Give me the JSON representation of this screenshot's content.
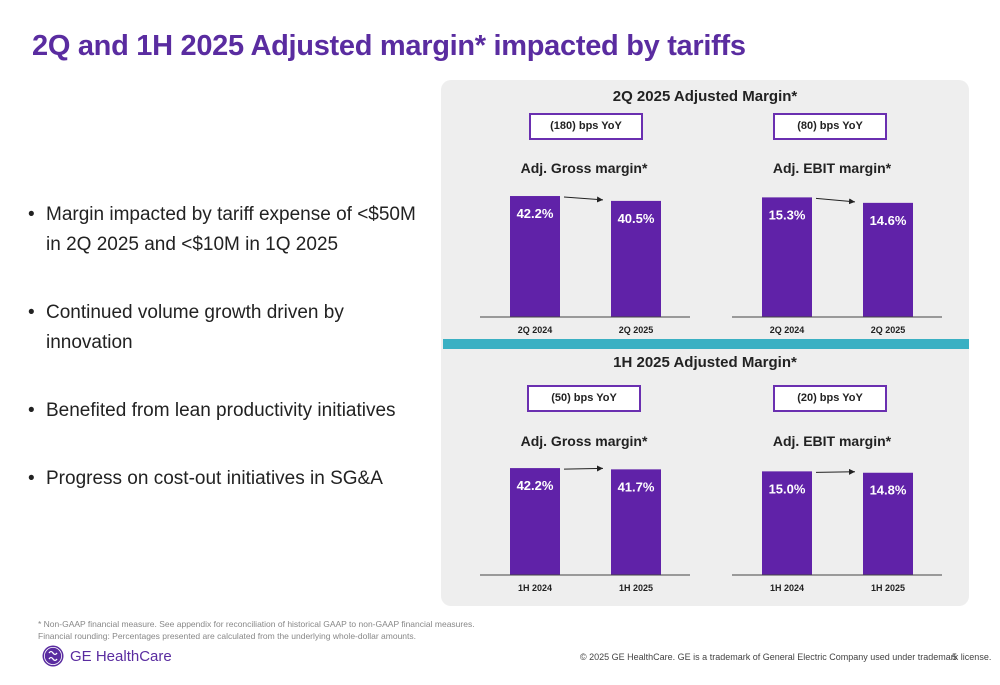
{
  "title": "2Q and 1H 2025 Adjusted margin* impacted by tariffs",
  "bullets": [
    "Margin impacted by tariff expense of <$50M in 2Q 2025 and <$10M in 1Q 2025",
    "Continued volume growth driven by innovation",
    "Benefited from lean productivity initiatives",
    "Progress on cost-out initiatives in SG&A"
  ],
  "sections": [
    {
      "title": "2Q 2025 Adjusted Margin*"
    },
    {
      "title": "1H 2025 Adjusted Margin*"
    }
  ],
  "colors": {
    "bar": "#6022a8",
    "accent": "#5a2ca0",
    "divider": "#3ab0c3",
    "panel": "#eeeeee"
  },
  "chart_data": [
    {
      "type": "bar",
      "section": "2Q 2025 Adjusted Margin*",
      "title": "Adj. Gross margin*",
      "yoy": "(180) bps YoY",
      "categories": [
        "2Q 2024",
        "2Q 2025"
      ],
      "values": [
        42.2,
        40.5
      ],
      "labels": [
        "42.2%",
        "40.5%"
      ],
      "ylim": [
        0,
        45
      ]
    },
    {
      "type": "bar",
      "section": "2Q 2025 Adjusted Margin*",
      "title": "Adj. EBIT margin*",
      "yoy": "(80) bps YoY",
      "categories": [
        "2Q 2024",
        "2Q 2025"
      ],
      "values": [
        15.3,
        14.6
      ],
      "labels": [
        "15.3%",
        "14.6%"
      ],
      "ylim": [
        0,
        16.5
      ]
    },
    {
      "type": "bar",
      "section": "1H 2025 Adjusted Margin*",
      "title": "Adj. Gross margin*",
      "yoy": "(50) bps YoY",
      "categories": [
        "1H 2024",
        "1H 2025"
      ],
      "values": [
        42.2,
        41.7
      ],
      "labels": [
        "42.2%",
        "41.7%"
      ],
      "ylim": [
        0,
        45
      ]
    },
    {
      "type": "bar",
      "section": "1H 2025 Adjusted Margin*",
      "title": "Adj. EBIT margin*",
      "yoy": "(20) bps YoY",
      "categories": [
        "1H 2024",
        "1H 2025"
      ],
      "values": [
        15.0,
        14.8
      ],
      "labels": [
        "15.0%",
        "14.8%"
      ],
      "ylim": [
        0,
        16.5
      ]
    }
  ],
  "footnote": [
    "* Non-GAAP financial measure. See appendix for reconciliation of historical GAAP to non-GAAP financial measures.",
    "Financial rounding: Percentages presented are calculated from the underlying whole-dollar amounts."
  ],
  "logo": {
    "text": "GE HealthCare",
    "icon": "ge-monogram-icon"
  },
  "copyright": "© 2025 GE HealthCare. GE is a trademark of General Electric Company used under trademark license.",
  "page_number": "5"
}
